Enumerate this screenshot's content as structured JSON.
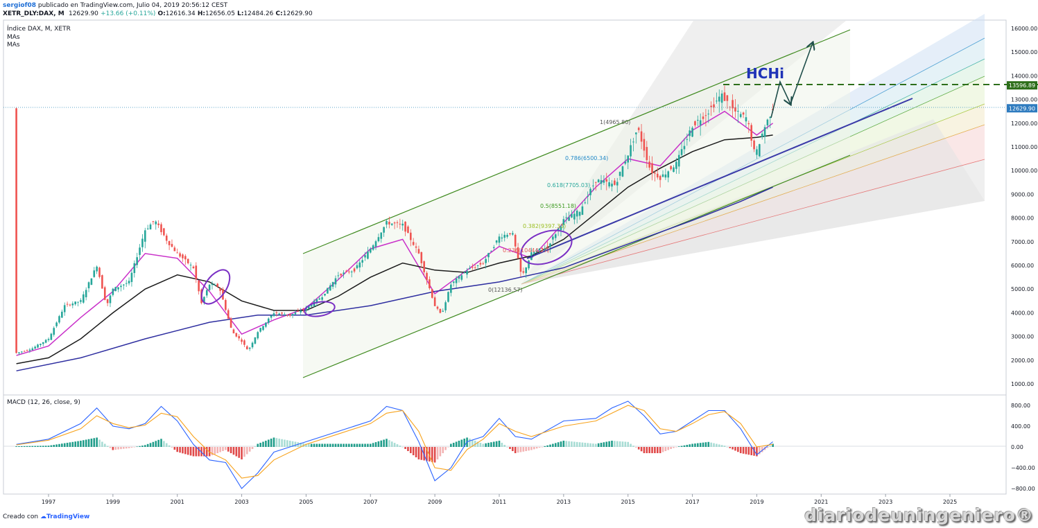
{
  "header": {
    "user": "sergiof08",
    "published": " publicado en TradingView.com, Julio 04, 2019 20:56:12 CEST",
    "symbol": "XETR_DLY:DAX, M",
    "last": "12629.90",
    "change": "+13.66 (+0.11%)",
    "o_label": "O:",
    "o": "12616.34",
    "h_label": "H:",
    "h": "12656.05",
    "l_label": "L:",
    "l": "12484.26",
    "c_label": "C:",
    "c": "12629.90"
  },
  "legend": {
    "title": "Índice DAX, M, XETR",
    "ma1": "MAs",
    "ma2": "MAs",
    "macd": "MACD (12, 26, close, 9)"
  },
  "footer": {
    "created": "Creado con",
    "brand": "TradingView"
  },
  "watermark": "diariodeuningeniero®",
  "colors": {
    "candle_up": "#26a69a",
    "candle_down": "#ef5350",
    "ma_fast": "#c930c9",
    "ma_mid": "#1a1a1a",
    "ma_slow": "#2e2ea0",
    "macd": "#2962ff",
    "signal": "#f7a21b",
    "channel": "#3f8a1f",
    "hchi": "#1f33b7",
    "arrow": "#1f4e4a",
    "resistance": "#2d6e1a"
  },
  "chart_data": [
    {
      "type": "candlestick",
      "title": "Índice DAX, M, XETR",
      "price_axis": {
        "ticks": [
          "16000.00",
          "15000.00",
          "14000.00",
          "13000.00",
          "12000.00",
          "11000.00",
          "10000.00",
          "9000.00",
          "8000.00",
          "7000.00",
          "6000.00",
          "5000.00",
          "4000.00",
          "3000.00",
          "2000.00",
          "1000.00"
        ],
        "range": [
          500,
          16400
        ]
      },
      "time_axis": {
        "ticks": [
          "1997",
          "1999",
          "2001",
          "2003",
          "2005",
          "2007",
          "2009",
          "2011",
          "2013",
          "2015",
          "2017",
          "2019",
          "2021",
          "2023",
          "2025"
        ],
        "range": [
          1995.75,
          2027.8
        ]
      },
      "price_labels": [
        {
          "value": "13596.89",
          "price": 13596.89,
          "style": "resistance"
        },
        {
          "value": "12629.90",
          "price": 12629.9,
          "style": "last"
        }
      ],
      "fib_levels": [
        {
          "label": "1(4965.80)",
          "color": "#555555"
        },
        {
          "label": "0.786(6500.34)",
          "color": "#2189c8"
        },
        {
          "label": "0.618(7705.03)",
          "color": "#26a69a"
        },
        {
          "label": "0.5(8551.18)",
          "color": "#3c9a1f"
        },
        {
          "label": "0.382(9397.33)",
          "color": "#9bbf22"
        },
        {
          "label": "0.236(10444.27)",
          "color": "#e35a5a"
        },
        {
          "label": "0(12136.57)",
          "color": "#555555"
        }
      ],
      "annotations": [
        {
          "text": "HCHi"
        }
      ],
      "series": [
        {
          "name": "DAX",
          "points": [
            [
              1996.0,
              2300
            ],
            [
              1996.5,
              2500
            ],
            [
              1997.0,
              2900
            ],
            [
              1997.5,
              4300
            ],
            [
              1998.0,
              4500
            ],
            [
              1998.5,
              6000
            ],
            [
              1998.8,
              4300
            ],
            [
              1999.0,
              5000
            ],
            [
              1999.5,
              5300
            ],
            [
              2000.0,
              7500
            ],
            [
              2000.3,
              7900
            ],
            [
              2000.7,
              7000
            ],
            [
              2001.0,
              6500
            ],
            [
              2001.5,
              5900
            ],
            [
              2001.75,
              4400
            ],
            [
              2002.0,
              5200
            ],
            [
              2002.3,
              5100
            ],
            [
              2002.7,
              3200
            ],
            [
              2003.0,
              2800
            ],
            [
              2003.2,
              2400
            ],
            [
              2003.5,
              3200
            ],
            [
              2004.0,
              4000
            ],
            [
              2004.5,
              3900
            ],
            [
              2005.0,
              4200
            ],
            [
              2005.5,
              4700
            ],
            [
              2006.0,
              5600
            ],
            [
              2006.5,
              5800
            ],
            [
              2007.0,
              6700
            ],
            [
              2007.5,
              7800
            ],
            [
              2008.0,
              7700
            ],
            [
              2008.5,
              6500
            ],
            [
              2009.0,
              4300
            ],
            [
              2009.2,
              3900
            ],
            [
              2009.5,
              5200
            ],
            [
              2010.0,
              5800
            ],
            [
              2010.5,
              6100
            ],
            [
              2011.0,
              7200
            ],
            [
              2011.4,
              7400
            ],
            [
              2011.7,
              5500
            ],
            [
              2012.0,
              6500
            ],
            [
              2012.5,
              6800
            ],
            [
              2013.0,
              7900
            ],
            [
              2013.5,
              8300
            ],
            [
              2014.0,
              9600
            ],
            [
              2014.6,
              9400
            ],
            [
              2015.0,
              10700
            ],
            [
              2015.3,
              11800
            ],
            [
              2015.7,
              10000
            ],
            [
              2016.0,
              9700
            ],
            [
              2016.5,
              10300
            ],
            [
              2017.0,
              11900
            ],
            [
              2017.5,
              12500
            ],
            [
              2017.9,
              13200
            ],
            [
              2018.3,
              12500
            ],
            [
              2018.7,
              12200
            ],
            [
              2018.95,
              10600
            ],
            [
              2019.2,
              11700
            ],
            [
              2019.5,
              12630
            ]
          ]
        },
        {
          "name": "MA fast",
          "points": [
            [
              1996.0,
              2200
            ],
            [
              1997.0,
              2600
            ],
            [
              1998.0,
              3800
            ],
            [
              1999.0,
              4900
            ],
            [
              2000.0,
              6500
            ],
            [
              2001.0,
              6300
            ],
            [
              2002.0,
              4900
            ],
            [
              2003.0,
              3100
            ],
            [
              2004.0,
              3700
            ],
            [
              2005.0,
              4200
            ],
            [
              2006.0,
              5400
            ],
            [
              2007.0,
              6700
            ],
            [
              2008.0,
              7100
            ],
            [
              2009.0,
              4800
            ],
            [
              2010.0,
              5800
            ],
            [
              2011.0,
              6800
            ],
            [
              2012.0,
              6300
            ],
            [
              2013.0,
              7800
            ],
            [
              2014.0,
              9300
            ],
            [
              2015.0,
              10500
            ],
            [
              2016.0,
              10200
            ],
            [
              2017.0,
              11700
            ],
            [
              2018.0,
              12500
            ],
            [
              2019.0,
              11500
            ],
            [
              2019.5,
              12000
            ]
          ]
        },
        {
          "name": "MA mid",
          "points": [
            [
              1996.0,
              1850
            ],
            [
              1997.0,
              2100
            ],
            [
              1998.0,
              2900
            ],
            [
              1999.0,
              4000
            ],
            [
              2000.0,
              5000
            ],
            [
              2001.0,
              5600
            ],
            [
              2002.0,
              5300
            ],
            [
              2003.0,
              4500
            ],
            [
              2004.0,
              4100
            ],
            [
              2005.0,
              4100
            ],
            [
              2006.0,
              4700
            ],
            [
              2007.0,
              5500
            ],
            [
              2008.0,
              6100
            ],
            [
              2009.0,
              5800
            ],
            [
              2010.0,
              5700
            ],
            [
              2011.0,
              6100
            ],
            [
              2012.0,
              6400
            ],
            [
              2013.0,
              7100
            ],
            [
              2014.0,
              8200
            ],
            [
              2015.0,
              9300
            ],
            [
              2016.0,
              10100
            ],
            [
              2017.0,
              10800
            ],
            [
              2018.0,
              11300
            ],
            [
              2019.0,
              11400
            ],
            [
              2019.5,
              11500
            ]
          ]
        },
        {
          "name": "MA slow",
          "points": [
            [
              1996.0,
              1550
            ],
            [
              1998.0,
              2100
            ],
            [
              2000.0,
              2900
            ],
            [
              2002.0,
              3600
            ],
            [
              2003.5,
              3900
            ],
            [
              2005.0,
              3900
            ],
            [
              2007.0,
              4300
            ],
            [
              2009.0,
              4900
            ],
            [
              2011.0,
              5300
            ],
            [
              2013.0,
              5900
            ],
            [
              2015.0,
              6900
            ],
            [
              2017.0,
              7900
            ],
            [
              2018.5,
              8700
            ],
            [
              2019.5,
              9300
            ]
          ]
        }
      ]
    },
    {
      "type": "macd",
      "title": "MACD (12, 26, close, 9)",
      "y_axis": {
        "ticks": [
          "800.00",
          "400.00",
          "0.00",
          "−400.00",
          "−800.00"
        ],
        "range": [
          -950,
          950
        ]
      },
      "series": [
        {
          "name": "MACD",
          "points": [
            [
              1996.0,
              50
            ],
            [
              1997.0,
              150
            ],
            [
              1998.0,
              450
            ],
            [
              1998.5,
              750
            ],
            [
              1999.0,
              400
            ],
            [
              1999.5,
              350
            ],
            [
              2000.0,
              450
            ],
            [
              2000.5,
              780
            ],
            [
              2001.0,
              500
            ],
            [
              2001.5,
              50
            ],
            [
              2002.0,
              -250
            ],
            [
              2002.5,
              -300
            ],
            [
              2003.0,
              -800
            ],
            [
              2003.5,
              -500
            ],
            [
              2004.0,
              -100
            ],
            [
              2005.0,
              100
            ],
            [
              2006.0,
              300
            ],
            [
              2007.0,
              500
            ],
            [
              2007.5,
              780
            ],
            [
              2008.0,
              700
            ],
            [
              2008.5,
              100
            ],
            [
              2009.0,
              -650
            ],
            [
              2009.5,
              -400
            ],
            [
              2010.0,
              100
            ],
            [
              2010.5,
              200
            ],
            [
              2011.0,
              550
            ],
            [
              2011.5,
              200
            ],
            [
              2012.0,
              150
            ],
            [
              2013.0,
              500
            ],
            [
              2014.0,
              550
            ],
            [
              2014.5,
              750
            ],
            [
              2015.0,
              880
            ],
            [
              2015.5,
              600
            ],
            [
              2016.0,
              250
            ],
            [
              2016.5,
              300
            ],
            [
              2017.0,
              500
            ],
            [
              2017.5,
              700
            ],
            [
              2018.0,
              700
            ],
            [
              2018.5,
              350
            ],
            [
              2019.0,
              -150
            ],
            [
              2019.5,
              100
            ]
          ]
        },
        {
          "name": "Signal",
          "points": [
            [
              1996.0,
              40
            ],
            [
              1997.0,
              130
            ],
            [
              1998.0,
              350
            ],
            [
              1998.5,
              600
            ],
            [
              1999.0,
              450
            ],
            [
              1999.5,
              370
            ],
            [
              2000.0,
              420
            ],
            [
              2000.5,
              650
            ],
            [
              2001.0,
              580
            ],
            [
              2001.5,
              200
            ],
            [
              2002.0,
              -100
            ],
            [
              2002.5,
              -250
            ],
            [
              2003.0,
              -600
            ],
            [
              2003.5,
              -550
            ],
            [
              2004.0,
              -250
            ],
            [
              2005.0,
              50
            ],
            [
              2006.0,
              250
            ],
            [
              2007.0,
              450
            ],
            [
              2007.5,
              650
            ],
            [
              2008.0,
              700
            ],
            [
              2008.5,
              300
            ],
            [
              2009.0,
              -400
            ],
            [
              2009.5,
              -450
            ],
            [
              2010.0,
              -50
            ],
            [
              2010.5,
              150
            ],
            [
              2011.0,
              450
            ],
            [
              2011.5,
              300
            ],
            [
              2012.0,
              200
            ],
            [
              2013.0,
              400
            ],
            [
              2014.0,
              500
            ],
            [
              2014.5,
              650
            ],
            [
              2015.0,
              800
            ],
            [
              2015.5,
              700
            ],
            [
              2016.0,
              350
            ],
            [
              2016.5,
              300
            ],
            [
              2017.0,
              450
            ],
            [
              2017.5,
              620
            ],
            [
              2018.0,
              680
            ],
            [
              2018.5,
              450
            ],
            [
              2019.0,
              0
            ],
            [
              2019.5,
              50
            ]
          ]
        }
      ]
    }
  ]
}
